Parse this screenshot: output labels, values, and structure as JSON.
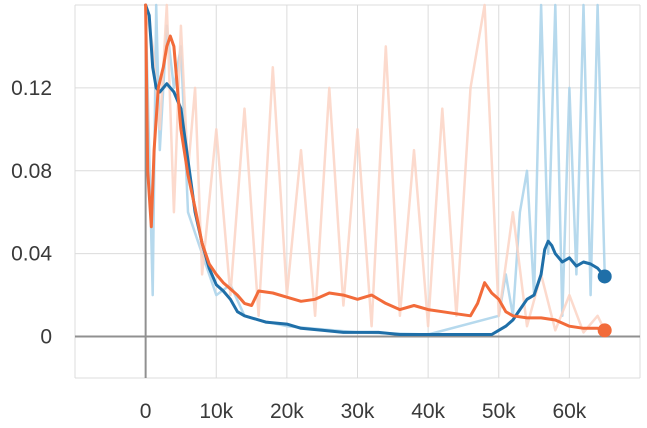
{
  "chart_data": {
    "type": "line",
    "title": "",
    "xlabel": "",
    "ylabel": "",
    "xlim": [
      -10000,
      70000
    ],
    "ylim": [
      -0.02,
      0.16
    ],
    "x_ticks": [
      0,
      10000,
      20000,
      30000,
      40000,
      50000,
      60000
    ],
    "x_tick_labels": [
      "0",
      "10k",
      "20k",
      "30k",
      "40k",
      "50k",
      "60k"
    ],
    "y_ticks": [
      0,
      0.04,
      0.08,
      0.12
    ],
    "y_tick_labels": [
      "0",
      "0.04",
      "0.08",
      "0.12"
    ],
    "grid": true,
    "legend": "none",
    "series": [
      {
        "color": "#1f6fa8",
        "raw_color": "#a9d2ea",
        "x": [
          0,
          500,
          1000,
          1500,
          2000,
          2500,
          3000,
          4000,
          5000,
          6000,
          7000,
          8000,
          9000,
          10000,
          11000,
          12000,
          13000,
          14000,
          15000,
          17000,
          20000,
          22000,
          25000,
          28000,
          30000,
          33000,
          36000,
          40000,
          43000,
          46000,
          49000,
          50000,
          51000,
          52000,
          53000,
          54000,
          55000,
          56000,
          56500,
          57000,
          57500,
          58000,
          59000,
          60000,
          61000,
          62000,
          63000,
          64000,
          65000
        ],
        "y": [
          0.16,
          0.155,
          0.13,
          0.12,
          0.118,
          0.12,
          0.122,
          0.118,
          0.11,
          0.085,
          0.06,
          0.045,
          0.033,
          0.025,
          0.022,
          0.018,
          0.012,
          0.01,
          0.009,
          0.007,
          0.006,
          0.004,
          0.003,
          0.002,
          0.002,
          0.002,
          0.001,
          0.001,
          0.001,
          0.001,
          0.001,
          0.003,
          0.005,
          0.008,
          0.013,
          0.018,
          0.02,
          0.03,
          0.042,
          0.046,
          0.044,
          0.04,
          0.036,
          0.038,
          0.034,
          0.036,
          0.035,
          0.033,
          0.029
        ],
        "raw_x": [
          0,
          1000,
          1500,
          2000,
          3000,
          4000,
          5000,
          6000,
          8000,
          10000,
          12000,
          14000,
          16000,
          20000,
          30000,
          40000,
          50000,
          51000,
          52000,
          53000,
          54000,
          55000,
          56000,
          57000,
          58000,
          59000,
          60000,
          61000,
          62000,
          63000,
          64000,
          65000
        ],
        "raw_y": [
          0.16,
          0.02,
          0.16,
          0.09,
          0.15,
          0.12,
          0.14,
          0.06,
          0.04,
          0.02,
          0.025,
          0.01,
          0.008,
          0.005,
          0.002,
          0.001,
          0.01,
          0.03,
          0.01,
          0.06,
          0.08,
          0.02,
          0.16,
          0.04,
          0.16,
          0.01,
          0.12,
          0.03,
          0.16,
          0.02,
          0.16,
          0.03
        ]
      },
      {
        "color": "#f26b3a",
        "raw_color": "#fcd3c4",
        "x": [
          0,
          300,
          800,
          1200,
          1800,
          2500,
          3000,
          3500,
          4000,
          4500,
          5000,
          6000,
          7000,
          8000,
          9000,
          10000,
          11000,
          12000,
          13000,
          14000,
          15000,
          16000,
          18000,
          20000,
          22000,
          24000,
          26000,
          28000,
          30000,
          32000,
          34000,
          36000,
          38000,
          40000,
          42000,
          44000,
          46000,
          47000,
          48000,
          49000,
          50000,
          51000,
          52000,
          54000,
          56000,
          58000,
          60000,
          62000,
          64000,
          65000
        ],
        "y": [
          0.16,
          0.08,
          0.053,
          0.09,
          0.12,
          0.13,
          0.14,
          0.145,
          0.14,
          0.12,
          0.1,
          0.078,
          0.062,
          0.045,
          0.035,
          0.03,
          0.026,
          0.023,
          0.02,
          0.016,
          0.015,
          0.022,
          0.021,
          0.019,
          0.017,
          0.018,
          0.021,
          0.02,
          0.018,
          0.02,
          0.016,
          0.013,
          0.015,
          0.013,
          0.012,
          0.011,
          0.01,
          0.016,
          0.026,
          0.021,
          0.018,
          0.012,
          0.01,
          0.009,
          0.009,
          0.008,
          0.005,
          0.004,
          0.004,
          0.003
        ],
        "raw_x": [
          0,
          1000,
          2000,
          3000,
          4000,
          5000,
          6000,
          7000,
          8000,
          10000,
          12000,
          14000,
          16000,
          18000,
          20000,
          22000,
          24000,
          26000,
          28000,
          30000,
          32000,
          34000,
          36000,
          38000,
          40000,
          42000,
          44000,
          46000,
          48000,
          50000,
          52000,
          54000,
          56000,
          58000,
          60000,
          62000,
          64000,
          65000
        ],
        "raw_y": [
          0.16,
          0.14,
          0.1,
          0.16,
          0.06,
          0.15,
          0.08,
          0.12,
          0.03,
          0.1,
          0.02,
          0.11,
          0.01,
          0.13,
          0.02,
          0.09,
          0.01,
          0.12,
          0.015,
          0.1,
          0.005,
          0.14,
          0.01,
          0.09,
          0.005,
          0.11,
          0.01,
          0.12,
          0.16,
          0.01,
          0.06,
          0.005,
          0.03,
          0.003,
          0.02,
          0.002,
          0.01,
          0.003
        ]
      }
    ]
  }
}
